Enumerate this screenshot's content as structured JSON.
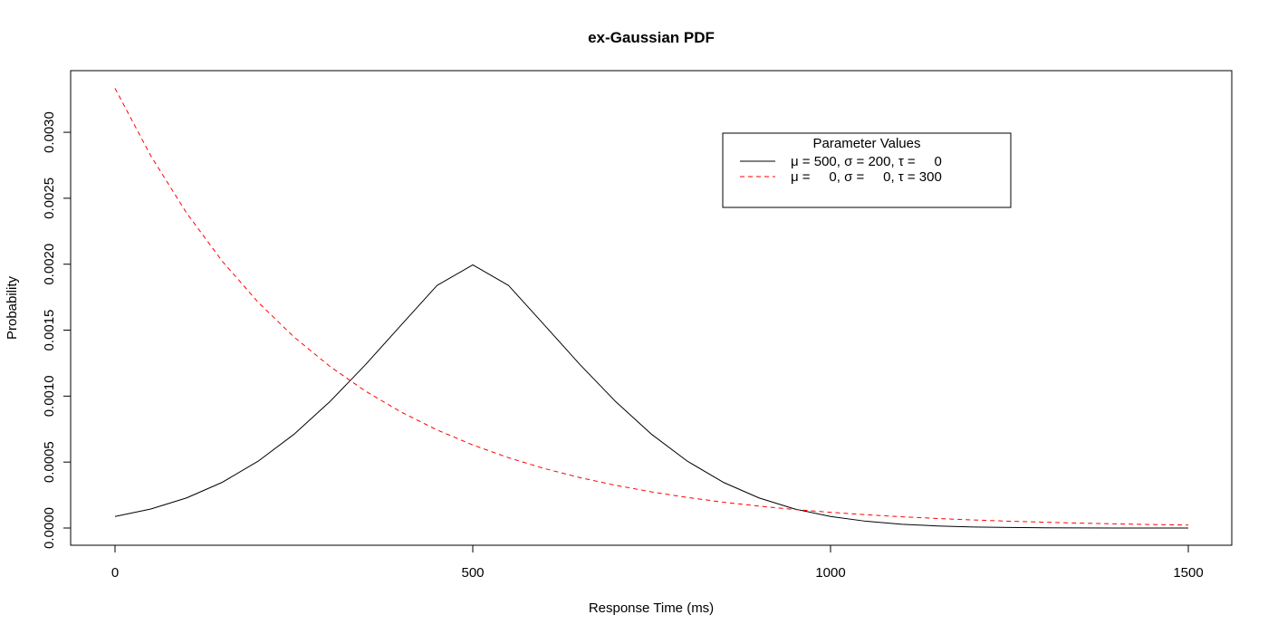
{
  "chart_data": {
    "type": "line",
    "title": "ex-Gaussian PDF",
    "xlabel": "Response Time (ms)",
    "ylabel": "Probability",
    "xlim": [
      0,
      1500
    ],
    "ylim": [
      0,
      0.00333
    ],
    "x_ticks": [
      {
        "value": 0,
        "label": "0"
      },
      {
        "value": 500,
        "label": "500"
      },
      {
        "value": 1000,
        "label": "1000"
      },
      {
        "value": 1500,
        "label": "1500"
      }
    ],
    "y_ticks": [
      {
        "value": 0.0,
        "label": "0.0000"
      },
      {
        "value": 0.0005,
        "label": "0.0005"
      },
      {
        "value": 0.001,
        "label": "0.0010"
      },
      {
        "value": 0.0015,
        "label": "0.0015"
      },
      {
        "value": 0.002,
        "label": "0.0020"
      },
      {
        "value": 0.0025,
        "label": "0.0025"
      },
      {
        "value": 0.003,
        "label": "0.0030"
      }
    ],
    "grid": false,
    "legend": {
      "title": "Parameter Values",
      "placement": "top-right",
      "entries": [
        {
          "label": "μ = 500, σ = 200, τ =     0",
          "series_index": 0
        },
        {
          "label": "μ =     0, σ =     0, τ = 300",
          "series_index": 1
        }
      ]
    },
    "series": [
      {
        "name": "μ = 500, σ = 200, τ =     0",
        "color": "#000000",
        "dash": "solid",
        "x": [
          0,
          50,
          100,
          150,
          200,
          250,
          300,
          350,
          400,
          450,
          500,
          550,
          600,
          650,
          700,
          750,
          800,
          850,
          900,
          950,
          1000,
          1050,
          1100,
          1150,
          1200,
          1250,
          1300,
          1350,
          1400,
          1450,
          1500
        ],
        "y": [
          8.76e-05,
          0.0001443,
          0.0002283,
          0.0003469,
          0.0005065,
          0.0007101,
          0.0009566,
          0.001238,
          0.0015394,
          0.0018388,
          0.0019947,
          0.0018388,
          0.0015394,
          0.001238,
          0.0009566,
          0.0007101,
          0.0005065,
          0.0003469,
          0.0002283,
          0.0001443,
          8.76e-05,
          5.11e-05,
          2.86e-05,
          1.54e-05,
          7.9e-06,
          3.9e-06,
          1.8e-06,
          8e-07,
          4e-07,
          2e-07,
          1e-07
        ]
      },
      {
        "name": "μ =     0, σ =     0, τ = 300",
        "color": "#ff0000",
        "dash": "dashed",
        "x": [
          0,
          50,
          100,
          150,
          200,
          250,
          300,
          350,
          400,
          450,
          500,
          550,
          600,
          650,
          700,
          750,
          800,
          850,
          900,
          950,
          1000,
          1050,
          1100,
          1150,
          1200,
          1250,
          1300,
          1350,
          1400,
          1450,
          1500
        ],
        "y": [
          0.0033333,
          0.0028217,
          0.0023884,
          0.0020218,
          0.0017114,
          0.0014487,
          0.0012263,
          0.001038,
          0.0008787,
          0.0007438,
          0.0006296,
          0.000533,
          0.0004511,
          0.0003819,
          0.0003233,
          0.0002737,
          0.0002316,
          0.0001961,
          0.000166,
          0.0001405,
          0.0001189,
          0.0001007,
          8.52e-05,
          7.21e-05,
          6.11e-05,
          5.17e-05,
          4.38e-05,
          3.7e-05,
          3.14e-05,
          2.65e-05,
          2.25e-05
        ]
      }
    ]
  }
}
